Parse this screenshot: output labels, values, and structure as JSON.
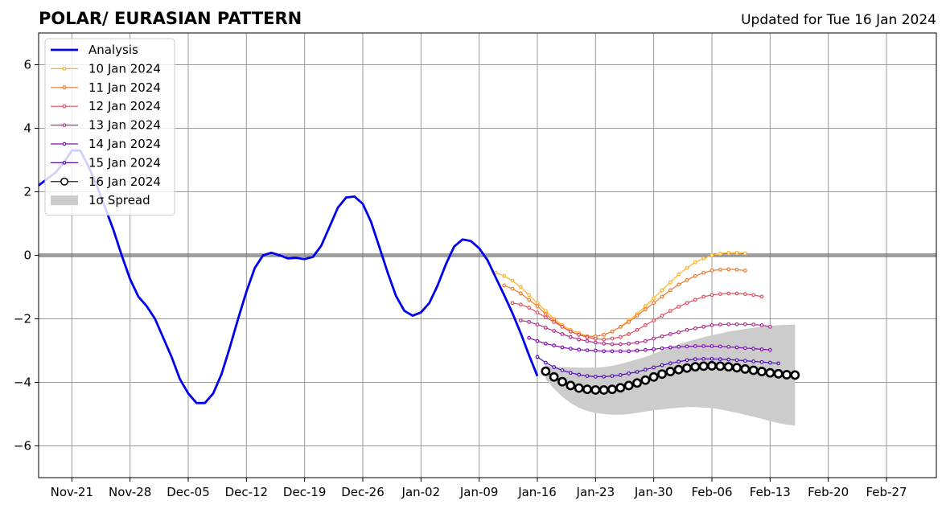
{
  "chart_data": {
    "type": "line",
    "title": "POLAR/ EURASIAN  PATTERN",
    "subtitle": "Updated for Tue 16 Jan 2024",
    "xlabel": "",
    "ylabel": "",
    "x_start": "2023-11-17",
    "x_end": "2024-03-04",
    "ylim": [
      -7,
      7
    ],
    "y_ticks": [
      -6,
      -4,
      -2,
      0,
      2,
      4,
      6
    ],
    "y_tick_labels": [
      "−6",
      "−4",
      "−2",
      "0",
      "2",
      "4",
      "6"
    ],
    "x_ticks": [
      {
        "date": "2023-11-21",
        "label": "Nov-21"
      },
      {
        "date": "2023-11-28",
        "label": "Nov-28"
      },
      {
        "date": "2023-12-05",
        "label": "Dec-05"
      },
      {
        "date": "2023-12-12",
        "label": "Dec-12"
      },
      {
        "date": "2023-12-19",
        "label": "Dec-19"
      },
      {
        "date": "2023-12-26",
        "label": "Dec-26"
      },
      {
        "date": "2024-01-02",
        "label": "Jan-02"
      },
      {
        "date": "2024-01-09",
        "label": "Jan-09"
      },
      {
        "date": "2024-01-16",
        "label": "Jan-16"
      },
      {
        "date": "2024-01-23",
        "label": "Jan-23"
      },
      {
        "date": "2024-01-30",
        "label": "Jan-30"
      },
      {
        "date": "2024-02-06",
        "label": "Feb-06"
      },
      {
        "date": "2024-02-13",
        "label": "Feb-13"
      },
      {
        "date": "2024-02-20",
        "label": "Feb-20"
      },
      {
        "date": "2024-02-27",
        "label": "Feb-27"
      }
    ],
    "grid": true,
    "legend": "top-left",
    "analysis": {
      "name": "Analysis",
      "color": "#0000ee",
      "start": "2023-11-17",
      "values": [
        2.2,
        2.4,
        2.6,
        2.9,
        3.3,
        3.3,
        2.8,
        2.2,
        1.5,
        0.8,
        0.0,
        -0.75,
        -1.3,
        -1.6,
        -2.0,
        -2.6,
        -3.2,
        -3.9,
        -4.35,
        -4.65,
        -4.65,
        -4.35,
        -3.75,
        -2.9,
        -2.0,
        -1.15,
        -0.4,
        0.0,
        0.08,
        0.0,
        -0.1,
        -0.08,
        -0.12,
        -0.05,
        0.3,
        0.9,
        1.5,
        1.82,
        1.85,
        1.62,
        1.05,
        0.25,
        -0.55,
        -1.28,
        -1.75,
        -1.9,
        -1.8,
        -1.5,
        -0.95,
        -0.28,
        0.28,
        0.5,
        0.45,
        0.22,
        -0.15,
        -0.7,
        -1.25,
        -1.82,
        -2.45,
        -3.15,
        -3.8
      ]
    },
    "forecasts": [
      {
        "name": "10 Jan 2024",
        "color": "#ffb020",
        "start": "2024-01-11",
        "values": [
          -0.55,
          -0.65,
          -0.8,
          -1.0,
          -1.25,
          -1.5,
          -1.75,
          -2.0,
          -2.2,
          -2.35,
          -2.45,
          -2.55,
          -2.55,
          -2.5,
          -2.4,
          -2.25,
          -2.05,
          -1.85,
          -1.6,
          -1.35,
          -1.1,
          -0.85,
          -0.6,
          -0.4,
          -0.22,
          -0.1,
          0.0,
          0.05,
          0.08,
          0.08,
          0.06
        ]
      },
      {
        "name": "11 Jan 2024",
        "color": "#f07830",
        "start": "2024-01-12",
        "values": [
          -0.95,
          -1.05,
          -1.2,
          -1.4,
          -1.6,
          -1.85,
          -2.05,
          -2.25,
          -2.4,
          -2.5,
          -2.55,
          -2.55,
          -2.5,
          -2.4,
          -2.25,
          -2.1,
          -1.9,
          -1.7,
          -1.5,
          -1.3,
          -1.1,
          -0.92,
          -0.78,
          -0.65,
          -0.55,
          -0.48,
          -0.45,
          -0.44,
          -0.45,
          -0.48
        ]
      },
      {
        "name": "12 Jan 2024",
        "color": "#e05060",
        "start": "2024-01-13",
        "values": [
          -1.5,
          -1.55,
          -1.65,
          -1.8,
          -1.95,
          -2.1,
          -2.25,
          -2.4,
          -2.5,
          -2.58,
          -2.63,
          -2.65,
          -2.62,
          -2.57,
          -2.48,
          -2.35,
          -2.2,
          -2.05,
          -1.9,
          -1.75,
          -1.62,
          -1.5,
          -1.4,
          -1.3,
          -1.25,
          -1.22,
          -1.2,
          -1.2,
          -1.22,
          -1.25,
          -1.3
        ]
      },
      {
        "name": "13 Jan 2024",
        "color": "#b03090",
        "start": "2024-01-14",
        "values": [
          -2.05,
          -2.1,
          -2.18,
          -2.28,
          -2.38,
          -2.48,
          -2.57,
          -2.65,
          -2.7,
          -2.75,
          -2.78,
          -2.8,
          -2.8,
          -2.78,
          -2.75,
          -2.7,
          -2.62,
          -2.55,
          -2.48,
          -2.42,
          -2.35,
          -2.3,
          -2.25,
          -2.2,
          -2.18,
          -2.17,
          -2.17,
          -2.17,
          -2.18,
          -2.2,
          -2.25
        ]
      },
      {
        "name": "14 Jan 2024",
        "color": "#8010b0",
        "start": "2024-01-15",
        "values": [
          -2.6,
          -2.7,
          -2.78,
          -2.84,
          -2.9,
          -2.94,
          -2.97,
          -2.99,
          -3.0,
          -3.02,
          -3.02,
          -3.02,
          -3.02,
          -3.0,
          -2.98,
          -2.96,
          -2.93,
          -2.9,
          -2.88,
          -2.87,
          -2.86,
          -2.86,
          -2.86,
          -2.87,
          -2.88,
          -2.9,
          -2.92,
          -2.94,
          -2.96,
          -2.98
        ]
      },
      {
        "name": "15 Jan 2024",
        "color": "#5010b0",
        "start": "2024-01-16",
        "values": [
          -3.2,
          -3.38,
          -3.52,
          -3.62,
          -3.7,
          -3.76,
          -3.8,
          -3.82,
          -3.82,
          -3.8,
          -3.77,
          -3.72,
          -3.67,
          -3.6,
          -3.53,
          -3.46,
          -3.4,
          -3.35,
          -3.3,
          -3.27,
          -3.26,
          -3.26,
          -3.27,
          -3.28,
          -3.3,
          -3.32,
          -3.34,
          -3.36,
          -3.38,
          -3.4
        ]
      },
      {
        "name": "16 Jan 2024",
        "color": "#000000",
        "start": "2024-01-17",
        "values": [
          -3.65,
          -3.83,
          -3.98,
          -4.1,
          -4.18,
          -4.22,
          -4.24,
          -4.24,
          -4.22,
          -4.17,
          -4.1,
          -4.02,
          -3.93,
          -3.83,
          -3.74,
          -3.66,
          -3.6,
          -3.55,
          -3.51,
          -3.49,
          -3.48,
          -3.49,
          -3.51,
          -3.54,
          -3.58,
          -3.62,
          -3.66,
          -3.7,
          -3.73,
          -3.76,
          -3.77
        ]
      }
    ],
    "spread": {
      "name": "1σ Spread",
      "color": "#cccccc",
      "start": "2024-01-17",
      "upper": [
        -3.45,
        -3.5,
        -3.52,
        -3.53,
        -3.54,
        -3.54,
        -3.54,
        -3.52,
        -3.48,
        -3.42,
        -3.35,
        -3.27,
        -3.2,
        -3.1,
        -3.0,
        -2.9,
        -2.8,
        -2.72,
        -2.65,
        -2.58,
        -2.52,
        -2.46,
        -2.4,
        -2.36,
        -2.32,
        -2.28,
        -2.25,
        -2.22,
        -2.2,
        -2.19,
        -2.18
      ],
      "lower": [
        -3.9,
        -4.2,
        -4.45,
        -4.65,
        -4.8,
        -4.9,
        -4.96,
        -5.0,
        -5.02,
        -5.02,
        -5.0,
        -4.96,
        -4.92,
        -4.88,
        -4.85,
        -4.82,
        -4.8,
        -4.78,
        -4.78,
        -4.79,
        -4.81,
        -4.85,
        -4.9,
        -4.96,
        -5.02,
        -5.08,
        -5.15,
        -5.22,
        -5.28,
        -5.33,
        -5.36
      ]
    }
  }
}
